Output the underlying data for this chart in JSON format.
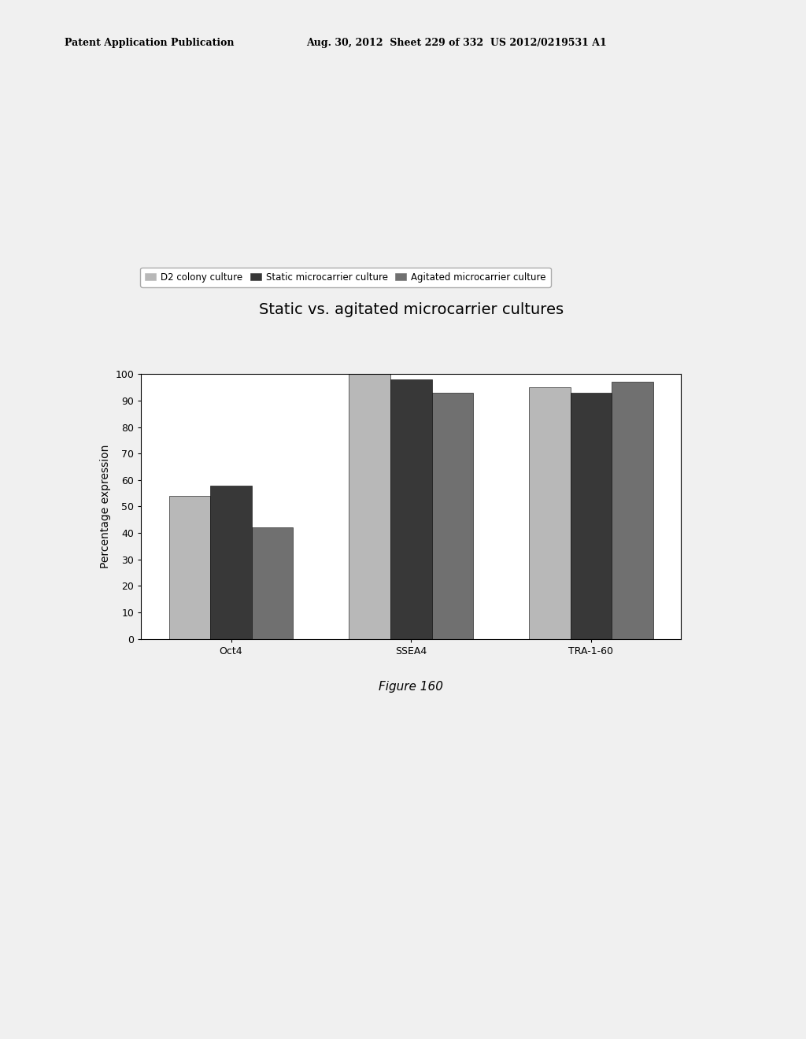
{
  "title": "Static vs. agitated microcarrier cultures",
  "ylabel": "Percentage expression",
  "categories": [
    "Oct4",
    "SSEA4",
    "TRA-1-60"
  ],
  "series": [
    {
      "label": "D2 colony culture",
      "values": [
        54,
        100,
        95
      ],
      "color": "#b8b8b8"
    },
    {
      "label": "Static microcarrier culture",
      "values": [
        58,
        98,
        93
      ],
      "color": "#383838"
    },
    {
      "label": "Agitated microcarrier culture",
      "values": [
        42,
        93,
        97
      ],
      "color": "#707070"
    }
  ],
  "ylim": [
    0,
    100
  ],
  "yticks": [
    0,
    10,
    20,
    30,
    40,
    50,
    60,
    70,
    80,
    90,
    100
  ],
  "background_color": "#f0f0f0",
  "plot_bg_color": "#ffffff",
  "title_fontsize": 14,
  "label_fontsize": 10,
  "tick_fontsize": 9,
  "legend_fontsize": 8.5,
  "figure_caption": "Figure 160",
  "header_line1": "Patent Application Publication",
  "header_line2": "Aug. 30, 2012  Sheet 229 of 332  US 2012/0219531 A1"
}
